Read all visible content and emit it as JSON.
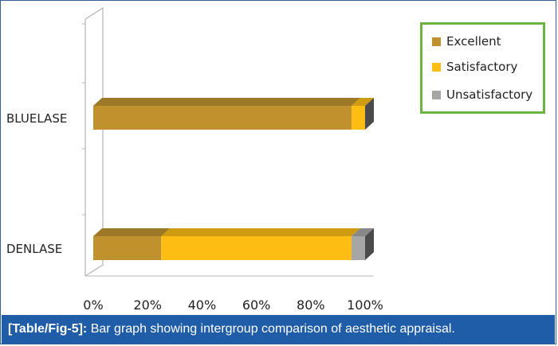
{
  "chart_data": {
    "type": "bar",
    "orientation": "horizontal",
    "stacked": true,
    "percent_stacked": true,
    "categories": [
      "BLUELASE",
      "DENLASE"
    ],
    "series": [
      {
        "name": "Excellent",
        "color": "#c0922e",
        "values": [
          95,
          25
        ]
      },
      {
        "name": "Satisfactory",
        "color": "#fdbd13",
        "values": [
          5,
          70
        ]
      },
      {
        "name": "Unsatisfactory",
        "color": "#a6a6a6",
        "values": [
          0,
          5
        ]
      }
    ],
    "xticks": [
      "0%",
      "20%",
      "40%",
      "60%",
      "80%",
      "100%"
    ],
    "xlim": [
      0,
      100
    ],
    "legend_position": "top-right",
    "grid": false
  },
  "caption": {
    "label": "[Table/Fig-5]:",
    "text": " Bar graph showing intergroup comparison of aesthetic appraisal."
  }
}
